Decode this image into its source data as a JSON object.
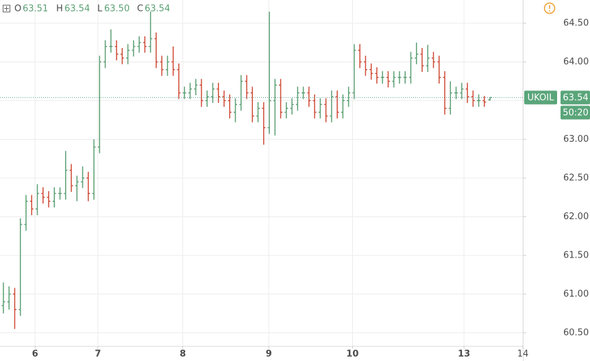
{
  "chart_data": {
    "type": "ohlc",
    "symbol": "UKOIL",
    "legend": {
      "open_label": "O",
      "open": "63.51",
      "high_label": "H",
      "high": "63.54",
      "low_label": "L",
      "low": "63.50",
      "close_label": "C",
      "close": "63.54"
    },
    "last_price": 63.54,
    "last_price_label": "63.54",
    "countdown": "50:20",
    "up_color": "#5b9f73",
    "down_color": "#cf4a35",
    "x": [
      0,
      1,
      2,
      3,
      4,
      5,
      6,
      7,
      8,
      9,
      10,
      11,
      12,
      13,
      14,
      15,
      16,
      17,
      18,
      19,
      20,
      21,
      22,
      23,
      24,
      25,
      26,
      27,
      28,
      29,
      30,
      31,
      32,
      33,
      34,
      35,
      36,
      37,
      38,
      39,
      40,
      41,
      42,
      43,
      44,
      45,
      46,
      47,
      48,
      49,
      50,
      51,
      52,
      53,
      54,
      55,
      56,
      57,
      58,
      59,
      60,
      61,
      62,
      63,
      64,
      65,
      66,
      67,
      68,
      69,
      70,
      71,
      72,
      73,
      74,
      75,
      76,
      77,
      78,
      79,
      80,
      81,
      82,
      83,
      84,
      85,
      86
    ],
    "open": [
      60.85,
      60.9,
      61.0,
      60.8,
      61.9,
      62.2,
      62.1,
      62.3,
      62.25,
      62.2,
      62.3,
      62.3,
      62.6,
      62.4,
      62.45,
      62.5,
      62.3,
      62.9,
      64.0,
      64.2,
      64.2,
      64.1,
      64.05,
      64.15,
      64.2,
      64.25,
      64.2,
      64.3,
      64.0,
      63.9,
      64.0,
      63.9,
      63.6,
      63.6,
      63.65,
      63.7,
      63.5,
      63.55,
      63.65,
      63.55,
      63.5,
      63.35,
      63.45,
      63.75,
      63.6,
      63.3,
      63.4,
      63.15,
      63.5,
      63.7,
      63.35,
      63.4,
      63.45,
      63.6,
      63.6,
      63.5,
      63.35,
      63.45,
      63.3,
      63.55,
      63.35,
      63.5,
      63.6,
      64.15,
      64.0,
      63.9,
      63.85,
      63.8,
      63.8,
      63.75,
      63.8,
      63.8,
      63.8,
      64.05,
      64.1,
      63.95,
      64.05,
      64.0,
      63.8,
      63.4,
      63.6,
      63.6,
      63.65,
      63.55,
      63.5,
      63.5,
      63.51
    ],
    "high": [
      61.15,
      61.1,
      61.08,
      61.98,
      62.28,
      62.28,
      62.42,
      62.38,
      62.33,
      62.38,
      62.38,
      62.85,
      62.68,
      62.53,
      62.65,
      62.58,
      63.0,
      64.08,
      64.28,
      64.42,
      64.28,
      64.18,
      64.23,
      64.28,
      64.33,
      64.33,
      64.65,
      64.38,
      64.08,
      64.08,
      64.2,
      63.98,
      63.68,
      63.73,
      63.78,
      63.78,
      63.63,
      63.73,
      63.73,
      63.63,
      63.58,
      63.53,
      63.83,
      63.83,
      63.68,
      63.48,
      63.48,
      64.65,
      63.78,
      63.78,
      63.48,
      63.53,
      63.68,
      63.68,
      63.68,
      63.58,
      63.53,
      63.53,
      63.63,
      63.63,
      63.58,
      63.68,
      64.23,
      64.23,
      64.08,
      63.98,
      63.93,
      63.88,
      63.88,
      63.88,
      63.88,
      63.88,
      64.13,
      64.25,
      64.18,
      64.22,
      64.13,
      64.08,
      63.88,
      63.75,
      63.68,
      63.73,
      63.73,
      63.63,
      63.58,
      63.56,
      63.54
    ],
    "low": [
      60.75,
      60.8,
      60.55,
      60.72,
      61.82,
      62.02,
      62.02,
      62.17,
      62.12,
      62.12,
      62.22,
      62.22,
      62.32,
      62.2,
      62.37,
      62.2,
      62.22,
      62.82,
      63.92,
      64.12,
      64.02,
      63.97,
      63.97,
      64.07,
      64.12,
      64.12,
      64.12,
      63.92,
      63.82,
      63.82,
      63.82,
      63.52,
      63.52,
      63.52,
      63.57,
      63.42,
      63.42,
      63.47,
      63.47,
      63.42,
      63.27,
      63.22,
      63.37,
      63.52,
      63.22,
      63.22,
      62.93,
      63.07,
      63.05,
      63.27,
      63.27,
      63.32,
      63.37,
      63.52,
      63.42,
      63.27,
      63.27,
      63.22,
      63.22,
      63.27,
      63.27,
      63.42,
      63.52,
      63.92,
      63.82,
      63.77,
      63.72,
      63.72,
      63.67,
      63.67,
      63.72,
      63.72,
      63.72,
      63.97,
      63.87,
      63.87,
      63.92,
      63.72,
      63.32,
      63.32,
      63.52,
      63.52,
      63.47,
      63.42,
      63.42,
      63.42,
      63.5
    ],
    "close": [
      60.9,
      61.0,
      60.8,
      61.9,
      62.2,
      62.1,
      62.3,
      62.25,
      62.2,
      62.3,
      62.3,
      62.6,
      62.4,
      62.45,
      62.5,
      62.3,
      62.9,
      64.0,
      64.2,
      64.2,
      64.1,
      64.05,
      64.15,
      64.2,
      64.25,
      64.2,
      64.3,
      64.0,
      63.9,
      64.0,
      63.9,
      63.6,
      63.6,
      63.65,
      63.7,
      63.5,
      63.55,
      63.65,
      63.55,
      63.5,
      63.35,
      63.45,
      63.75,
      63.6,
      63.3,
      63.4,
      63.15,
      63.5,
      63.7,
      63.35,
      63.4,
      63.45,
      63.6,
      63.6,
      63.5,
      63.35,
      63.45,
      63.3,
      63.55,
      63.35,
      63.5,
      63.6,
      64.15,
      64.0,
      63.9,
      63.85,
      63.8,
      63.8,
      63.75,
      63.8,
      63.8,
      63.8,
      64.05,
      64.1,
      63.95,
      64.05,
      64.0,
      63.8,
      63.4,
      63.6,
      63.6,
      63.65,
      63.55,
      63.5,
      63.5,
      63.48,
      63.54
    ],
    "xlim": [
      -0.6,
      91.8
    ],
    "xticks": [
      {
        "value": 5.6,
        "label": "6"
      },
      {
        "value": 16.7,
        "label": "7"
      },
      {
        "value": 31.7,
        "label": "8"
      },
      {
        "value": 46.9,
        "label": "9"
      },
      {
        "value": 61.7,
        "label": "10"
      },
      {
        "value": 81.4,
        "label": "13"
      },
      {
        "value": 91.8,
        "label": "14"
      }
    ],
    "ylim": [
      60.33,
      64.8
    ],
    "yticks": [
      {
        "value": 60.5,
        "label": "60.50"
      },
      {
        "value": 61,
        "label": "61.00"
      },
      {
        "value": 61.5,
        "label": "61.50"
      },
      {
        "value": 62,
        "label": "62.00"
      },
      {
        "value": 62.5,
        "label": "62.50"
      },
      {
        "value": 63,
        "label": "63.00"
      },
      {
        "value": 63.5,
        "label": "63.50"
      },
      {
        "value": 64,
        "label": "64.00"
      },
      {
        "value": 64.5,
        "label": "64.50"
      }
    ],
    "grid": true
  }
}
